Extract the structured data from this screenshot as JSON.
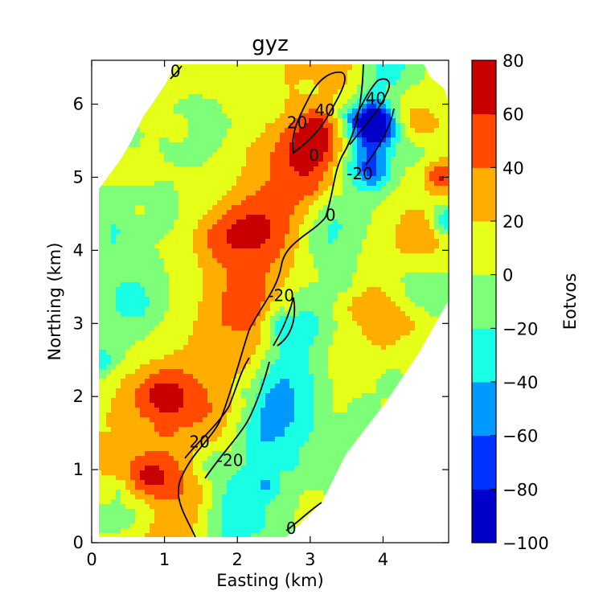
{
  "chart_data": {
    "type": "heatmap",
    "title": "gyz",
    "xlabel": "Easting (km)",
    "ylabel": "Northing (km)",
    "xlim": [
      0,
      4.9
    ],
    "ylim": [
      0,
      6.6
    ],
    "x_ticks": [
      "0",
      "1",
      "2",
      "3",
      "4"
    ],
    "y_ticks": [
      "0",
      "1",
      "2",
      "3",
      "4",
      "5",
      "6"
    ],
    "colorbar": {
      "label": "Eotvos",
      "levels": [
        -100,
        -80,
        -60,
        -40,
        -20,
        0,
        20,
        40,
        60,
        80
      ],
      "tick_labels": [
        "−100",
        "−80",
        "−60",
        "−40",
        "−20",
        "0",
        "20",
        "40",
        "60",
        "80"
      ],
      "colors": [
        "#0000c8",
        "#0033ff",
        "#0099ff",
        "#19ffe5",
        "#7dff7a",
        "#e5ff19",
        "#ffae00",
        "#ff4a00",
        "#c80000"
      ]
    },
    "contour_labels": [
      {
        "text": "0",
        "x": 1.15,
        "y": 6.45
      },
      {
        "text": "20",
        "x": 2.82,
        "y": 5.75
      },
      {
        "text": "40",
        "x": 3.2,
        "y": 5.92
      },
      {
        "text": "0",
        "x": 3.05,
        "y": 5.3
      },
      {
        "text": "40",
        "x": 3.9,
        "y": 6.08
      },
      {
        "text": "-20",
        "x": 3.68,
        "y": 5.05
      },
      {
        "text": "0",
        "x": 3.28,
        "y": 4.48
      },
      {
        "text": "-20",
        "x": 2.6,
        "y": 3.38
      },
      {
        "text": "20",
        "x": 1.48,
        "y": 1.38
      },
      {
        "text": "-20",
        "x": 1.9,
        "y": 1.13
      },
      {
        "text": "0",
        "x": 2.74,
        "y": 0.2
      }
    ],
    "grid": false
  }
}
